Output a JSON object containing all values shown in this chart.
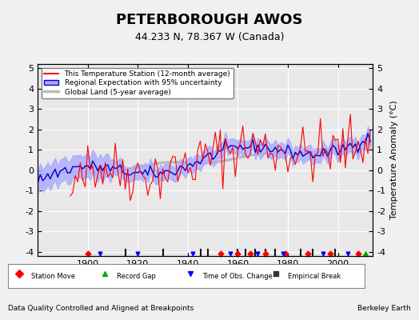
{
  "title": "PETERBOROUGH AWOS",
  "subtitle": "44.233 N, 78.367 W (Canada)",
  "ylabel": "Temperature Anomaly (°C)",
  "xlabel_bottom": "Data Quality Controlled and Aligned at Breakpoints",
  "xlabel_bottom_right": "Berkeley Earth",
  "ylim": [
    -4.2,
    5.2
  ],
  "xlim": [
    1880,
    2014
  ],
  "yticks": [
    -4,
    -3,
    -2,
    -1,
    0,
    1,
    2,
    3,
    4,
    5
  ],
  "xticks": [
    1900,
    1920,
    1940,
    1960,
    1980,
    2000
  ],
  "bg_color": "#f0f0f0",
  "plot_bg_color": "#e8e8e8",
  "grid_color": "#ffffff",
  "station_line_color": "#ff0000",
  "regional_line_color": "#0000cc",
  "regional_fill_color": "#aaaaff",
  "global_line_color": "#bbbbbb",
  "seed": 42,
  "start_year": 1880,
  "end_year": 2013,
  "legend_labels": [
    "This Temperature Station (12-month average)",
    "Regional Expectation with 95% uncertainty",
    "Global Land (5-year average)"
  ],
  "bottom_legend_labels": [
    "Station Move",
    "Record Gap",
    "Time of Obs. Change",
    "Empirical Break"
  ],
  "bottom_legend_colors": [
    "#ff0000",
    "#00aa00",
    "#0000ff",
    "#333333"
  ],
  "bottom_legend_markers": [
    "D",
    "^",
    "v",
    "s"
  ],
  "station_moves": [
    1900,
    1953,
    1960,
    1965,
    1971,
    1979,
    1988,
    1997,
    2008
  ],
  "record_gaps": [
    2011
  ],
  "obs_changes": [
    1905,
    1920,
    1942,
    1957,
    1968,
    1978,
    1994,
    2004
  ],
  "emp_breaks": [
    1915,
    1930,
    1945,
    1948,
    1960,
    1963,
    1967,
    1971,
    1975,
    1985,
    1990,
    1999
  ]
}
